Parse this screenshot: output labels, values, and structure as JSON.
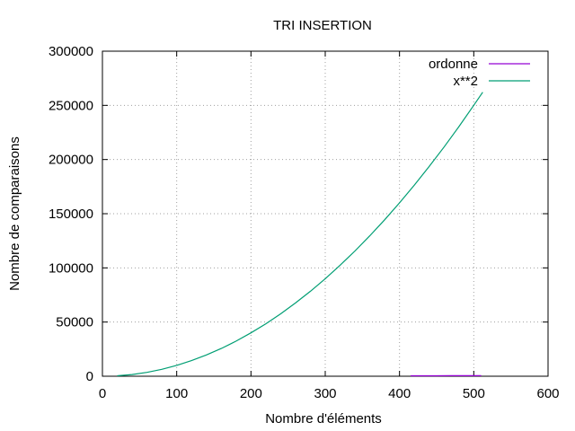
{
  "chart_data": {
    "type": "line",
    "title": "TRI INSERTION",
    "xlabel": "Nombre d'éléments",
    "ylabel": "Nombre de comparaisons",
    "xlim": [
      0,
      600
    ],
    "ylim": [
      0,
      300000
    ],
    "xticks": [
      0,
      100,
      200,
      300,
      400,
      500,
      600
    ],
    "yticks": [
      0,
      50000,
      100000,
      150000,
      200000,
      250000,
      300000
    ],
    "xtick_labels": [
      "0",
      "100",
      "200",
      "300",
      "400",
      "500",
      "600"
    ],
    "ytick_labels": [
      "0",
      "50000",
      "100000",
      "150000",
      "200000",
      "250000",
      "300000"
    ],
    "grid": true,
    "legend_position": "top-right",
    "series": [
      {
        "name": "ordonne",
        "color": "#9400d3",
        "x": [
          415,
          430,
          450,
          470,
          490,
          510
        ],
        "y": [
          414,
          429,
          449,
          469,
          489,
          509
        ]
      },
      {
        "name": "x**2",
        "color": "#009e73",
        "x": [
          20,
          40,
          60,
          80,
          100,
          120,
          140,
          160,
          180,
          200,
          220,
          240,
          260,
          280,
          300,
          320,
          340,
          360,
          380,
          400,
          420,
          440,
          460,
          480,
          500,
          512
        ],
        "y": [
          400,
          1600,
          3600,
          6400,
          10000,
          14400,
          19600,
          25600,
          32400,
          40000,
          48400,
          57600,
          67600,
          78400,
          90000,
          102400,
          115600,
          129600,
          144400,
          160000,
          176400,
          193600,
          211600,
          230400,
          250000,
          262144
        ]
      }
    ]
  }
}
